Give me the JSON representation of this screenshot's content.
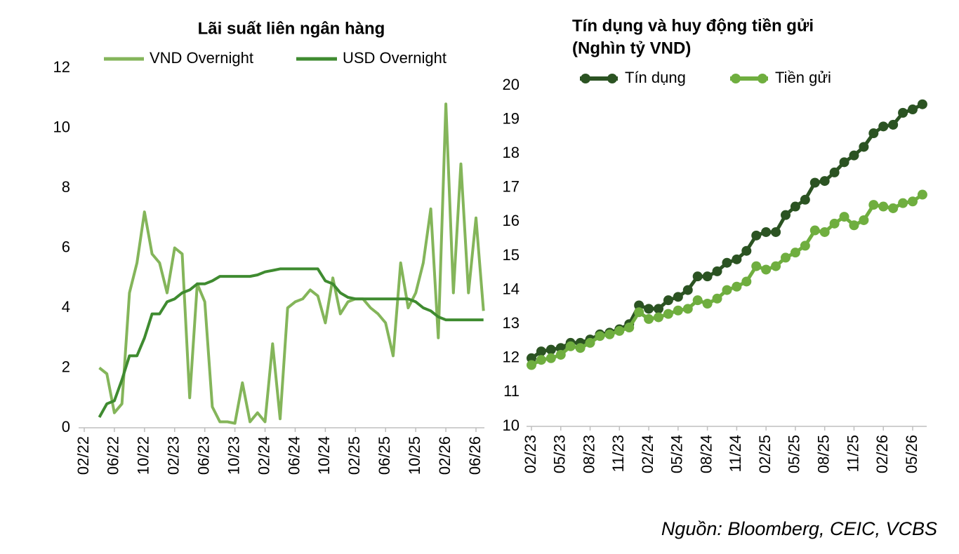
{
  "chart_data": [
    {
      "type": "line",
      "title": "Lãi suất liên ngân hàng",
      "markers": false,
      "categories": [
        "02/22",
        null,
        null,
        null,
        "06/22",
        null,
        null,
        null,
        "10/22",
        null,
        null,
        null,
        "02/23",
        null,
        null,
        null,
        "06/23",
        null,
        null,
        null,
        "10/23",
        null,
        null,
        null,
        "02/24",
        null,
        null,
        null,
        "06/24",
        null,
        null,
        null,
        "10/24",
        null,
        null,
        null,
        "02/25",
        null,
        null,
        null,
        "06/25",
        null,
        null,
        null,
        "10/25",
        null,
        null,
        null,
        "02/26",
        null,
        null,
        null,
        "06/26",
        null
      ],
      "series": [
        {
          "name": "VND Overnight",
          "color": "#84b55a",
          "values": [
            null,
            null,
            2.0,
            1.8,
            0.5,
            0.8,
            4.5,
            5.5,
            7.2,
            5.8,
            5.5,
            4.5,
            6.0,
            5.8,
            1.0,
            4.8,
            4.2,
            0.7,
            0.2,
            0.2,
            0.15,
            1.5,
            0.2,
            0.5,
            0.2,
            2.8,
            0.3,
            4.0,
            4.2,
            4.3,
            4.6,
            4.4,
            3.5,
            5.0,
            3.8,
            4.2,
            4.3,
            4.3,
            4.0,
            3.8,
            3.5,
            2.4,
            5.5,
            4.0,
            4.5,
            5.5,
            7.3,
            3.0,
            10.8,
            4.5,
            8.8,
            4.5,
            7.0,
            3.9
          ]
        },
        {
          "name": "USD Overnight",
          "color": "#3f8b30",
          "values": [
            null,
            null,
            0.35,
            0.8,
            0.9,
            1.6,
            2.4,
            2.4,
            3.0,
            3.8,
            3.8,
            4.2,
            4.3,
            4.5,
            4.6,
            4.8,
            4.8,
            4.9,
            5.05,
            5.05,
            5.05,
            5.05,
            5.05,
            5.1,
            5.2,
            5.25,
            5.3,
            5.3,
            5.3,
            5.3,
            5.3,
            5.3,
            4.9,
            4.8,
            4.5,
            4.35,
            4.3,
            4.3,
            4.3,
            4.3,
            4.3,
            4.3,
            4.3,
            4.3,
            4.2,
            4.0,
            3.9,
            3.7,
            3.6,
            3.6,
            3.6,
            3.6,
            3.6,
            3.6
          ]
        }
      ],
      "ylim": [
        0,
        12
      ],
      "yticks": [
        0,
        2,
        4,
        6,
        8,
        10,
        12
      ],
      "grid": false,
      "legend": "top"
    },
    {
      "type": "line",
      "title": "Tín dụng và huy động tiền gửi",
      "subtitle": "(Nghìn tỷ VND)",
      "markers": true,
      "categories": [
        "02/23",
        null,
        null,
        "05/23",
        null,
        null,
        "08/23",
        null,
        null,
        "11/23",
        null,
        null,
        "02/24",
        null,
        null,
        "05/24",
        null,
        null,
        "08/24",
        null,
        null,
        "11/24",
        null,
        null,
        "02/25",
        null,
        null,
        "05/25",
        null,
        null,
        "08/25",
        null,
        null,
        "11/25",
        null,
        null,
        "02/26",
        null,
        null,
        "05/26",
        null
      ],
      "series": [
        {
          "name": "Tín dụng",
          "color": "#2b5322",
          "values": [
            12.0,
            12.2,
            12.25,
            12.3,
            12.45,
            12.45,
            12.55,
            12.7,
            12.75,
            12.85,
            13.0,
            13.55,
            13.45,
            13.45,
            13.7,
            13.8,
            14.0,
            14.4,
            14.4,
            14.55,
            14.8,
            14.9,
            15.15,
            15.6,
            15.7,
            15.7,
            16.2,
            16.45,
            16.65,
            17.15,
            17.2,
            17.45,
            17.75,
            17.95,
            18.2,
            18.6,
            18.8,
            18.85,
            19.2,
            19.3,
            19.45
          ]
        },
        {
          "name": "Tiền gửi",
          "color": "#6fae3f",
          "values": [
            11.8,
            11.95,
            12.0,
            12.1,
            12.35,
            12.3,
            12.45,
            12.65,
            12.7,
            12.8,
            12.9,
            13.35,
            13.15,
            13.2,
            13.3,
            13.4,
            13.45,
            13.7,
            13.6,
            13.75,
            14.0,
            14.1,
            14.25,
            14.7,
            14.6,
            14.7,
            14.95,
            15.1,
            15.3,
            15.75,
            15.7,
            15.95,
            16.15,
            15.9,
            16.05,
            16.5,
            16.45,
            16.4,
            16.55,
            16.6,
            16.8
          ]
        }
      ],
      "ylim": [
        10,
        20
      ],
      "yticks": [
        10,
        11,
        12,
        13,
        14,
        15,
        16,
        17,
        18,
        19,
        20
      ],
      "grid": false,
      "legend": "top"
    }
  ],
  "source": "Nguồn: Bloomberg, CEIC, VCBS"
}
